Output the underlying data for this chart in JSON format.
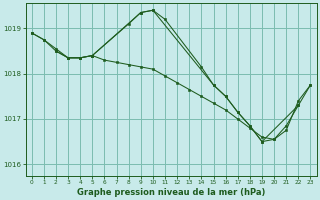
{
  "title": "Graphe pression niveau de la mer (hPa)",
  "background_color": "#c8eaea",
  "plot_background": "#c8eaea",
  "grid_color": "#7bbcb0",
  "line_color": "#1e5c1e",
  "marker_color": "#1e5c1e",
  "ylim": [
    1015.75,
    1019.55
  ],
  "yticks": [
    1016,
    1017,
    1018,
    1019
  ],
  "xlim": [
    -0.5,
    23.5
  ],
  "xticks": [
    0,
    1,
    2,
    3,
    4,
    5,
    6,
    7,
    8,
    9,
    10,
    11,
    12,
    13,
    14,
    15,
    16,
    17,
    18,
    19,
    20,
    21,
    22,
    23
  ],
  "series1": [
    1018.9,
    1018.75,
    1018.55,
    1018.35,
    1018.35,
    1018.4,
    1018.3,
    1018.25,
    1018.2,
    1018.15,
    1018.1,
    1017.95,
    1017.8,
    1017.65,
    1017.5,
    1017.35,
    1017.2,
    1017.0,
    1016.8,
    1016.6,
    1016.55,
    1016.75,
    1017.4,
    1017.75
  ],
  "series2_x": [
    0,
    1,
    2,
    3,
    4,
    5,
    8,
    9,
    10,
    11,
    14,
    15,
    16,
    17,
    18,
    19,
    20,
    21,
    22
  ],
  "series2_y": [
    1018.9,
    1018.75,
    1018.5,
    1018.35,
    1018.35,
    1018.4,
    1019.1,
    1019.35,
    1019.4,
    1019.2,
    1018.15,
    1017.75,
    1017.5,
    1017.15,
    1016.85,
    1016.5,
    1016.55,
    1016.85,
    1017.3
  ],
  "series3_x": [
    2,
    3,
    4,
    5,
    9,
    10,
    15,
    16,
    17,
    18,
    19,
    22,
    23
  ],
  "series3_y": [
    1018.5,
    1018.35,
    1018.35,
    1018.4,
    1019.35,
    1019.4,
    1017.75,
    1017.5,
    1017.15,
    1016.85,
    1016.5,
    1017.3,
    1017.75
  ]
}
